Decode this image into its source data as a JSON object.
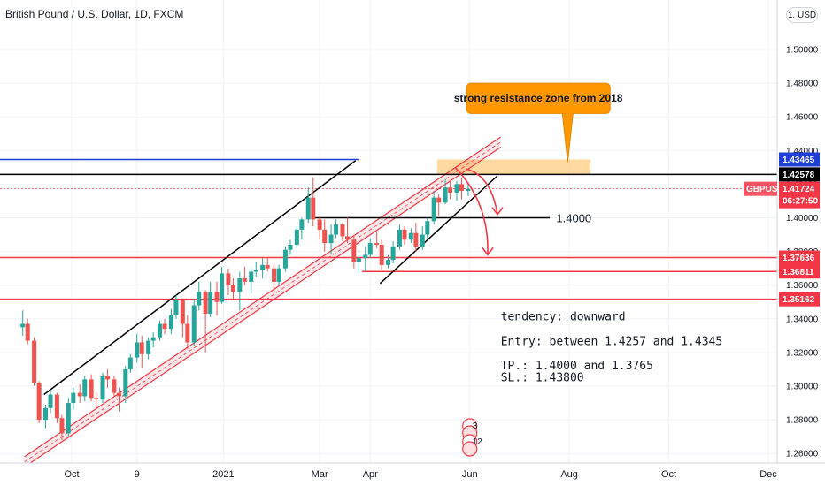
{
  "chart_title": "British Pound / U.S. Dollar, 1D, FXCM",
  "currency_button": "1. USD",
  "chart_data": {
    "type": "candlestick",
    "symbol": "GBPUSD",
    "last_price": "1.41724",
    "countdown": "06:27:50",
    "y_axis_ticks": [
      "1.50000",
      "1.48000",
      "1.46000",
      "1.44000",
      "1.42000",
      "1.40000",
      "1.38000",
      "1.36000",
      "1.34000",
      "1.32000",
      "1.30000",
      "1.28000",
      "1.26000"
    ],
    "ylim": [
      1.255,
      1.52
    ],
    "x_axis_ticks": [
      "Oct",
      "9",
      "2021",
      "Mar",
      "Apr",
      "Jun",
      "Aug",
      "Oct",
      "Dec"
    ],
    "x_range": [
      "2020-08-30",
      "2021-12-31"
    ],
    "price_tags": [
      {
        "label": "1.43465",
        "value": 1.43465,
        "color": "#1f3fd6"
      },
      {
        "label": "1.42578",
        "value": 1.42578,
        "color": "#000000"
      },
      {
        "label": "1.37636",
        "value": 1.37636,
        "color": "#f23645"
      },
      {
        "label": "1.36811",
        "value": 1.36811,
        "color": "#f23645"
      },
      {
        "label": "1.35162",
        "value": 1.35162,
        "color": "#f23645"
      }
    ],
    "candles": [
      [
        "2020-08-31",
        1.335,
        1.345,
        1.33,
        1.337
      ],
      [
        "2020-09-03",
        1.337,
        1.34,
        1.325,
        1.327
      ],
      [
        "2020-09-07",
        1.327,
        1.329,
        1.3,
        1.302
      ],
      [
        "2020-09-10",
        1.302,
        1.303,
        1.278,
        1.28
      ],
      [
        "2020-09-14",
        1.28,
        1.289,
        1.275,
        1.287
      ],
      [
        "2020-09-17",
        1.287,
        1.298,
        1.284,
        1.295
      ],
      [
        "2020-09-21",
        1.295,
        1.296,
        1.278,
        1.281
      ],
      [
        "2020-09-24",
        1.281,
        1.283,
        1.268,
        1.272
      ],
      [
        "2020-09-28",
        1.272,
        1.293,
        1.27,
        1.29
      ],
      [
        "2020-10-01",
        1.29,
        1.299,
        1.286,
        1.296
      ],
      [
        "2020-10-05",
        1.296,
        1.301,
        1.29,
        1.294
      ],
      [
        "2020-10-08",
        1.294,
        1.306,
        1.291,
        1.304
      ],
      [
        "2020-10-12",
        1.304,
        1.307,
        1.291,
        1.293
      ],
      [
        "2020-10-15",
        1.293,
        1.296,
        1.287,
        1.292
      ],
      [
        "2020-10-19",
        1.292,
        1.308,
        1.29,
        1.306
      ],
      [
        "2020-10-22",
        1.306,
        1.31,
        1.299,
        1.304
      ],
      [
        "2020-10-26",
        1.304,
        1.306,
        1.294,
        1.296
      ],
      [
        "2020-10-29",
        1.296,
        1.299,
        1.285,
        1.294
      ],
      [
        "2020-11-02",
        1.294,
        1.312,
        1.29,
        1.31
      ],
      [
        "2020-11-05",
        1.31,
        1.319,
        1.308,
        1.317
      ],
      [
        "2020-11-09",
        1.317,
        1.331,
        1.314,
        1.326
      ],
      [
        "2020-11-12",
        1.326,
        1.33,
        1.311,
        1.319
      ],
      [
        "2020-11-16",
        1.319,
        1.329,
        1.316,
        1.327
      ],
      [
        "2020-11-19",
        1.327,
        1.332,
        1.323,
        1.329
      ],
      [
        "2020-11-23",
        1.329,
        1.339,
        1.327,
        1.337
      ],
      [
        "2020-11-26",
        1.337,
        1.34,
        1.331,
        1.334
      ],
      [
        "2020-11-30",
        1.334,
        1.346,
        1.331,
        1.342
      ],
      [
        "2020-12-03",
        1.342,
        1.354,
        1.34,
        1.351
      ],
      [
        "2020-12-07",
        1.351,
        1.352,
        1.329,
        1.337
      ],
      [
        "2020-12-10",
        1.337,
        1.342,
        1.322,
        1.326
      ],
      [
        "2020-12-14",
        1.326,
        1.352,
        1.324,
        1.348
      ],
      [
        "2020-12-17",
        1.348,
        1.362,
        1.345,
        1.356
      ],
      [
        "2020-12-21",
        1.356,
        1.357,
        1.32,
        1.343
      ],
      [
        "2020-12-24",
        1.343,
        1.362,
        1.341,
        1.356
      ],
      [
        "2020-12-28",
        1.356,
        1.362,
        1.342,
        1.35
      ],
      [
        "2020-12-31",
        1.35,
        1.371,
        1.349,
        1.367
      ],
      [
        "2021-01-04",
        1.367,
        1.37,
        1.354,
        1.36
      ],
      [
        "2021-01-07",
        1.36,
        1.364,
        1.352,
        1.356
      ],
      [
        "2021-01-11",
        1.356,
        1.368,
        1.345,
        1.364
      ],
      [
        "2021-01-14",
        1.364,
        1.371,
        1.36,
        1.362
      ],
      [
        "2021-01-18",
        1.362,
        1.37,
        1.355,
        1.368
      ],
      [
        "2021-01-21",
        1.368,
        1.374,
        1.365,
        1.369
      ],
      [
        "2021-01-25",
        1.369,
        1.376,
        1.364,
        1.372
      ],
      [
        "2021-01-28",
        1.372,
        1.376,
        1.368,
        1.37
      ],
      [
        "2021-02-01",
        1.37,
        1.373,
        1.357,
        1.362
      ],
      [
        "2021-02-04",
        1.362,
        1.372,
        1.36,
        1.37
      ],
      [
        "2021-02-08",
        1.37,
        1.383,
        1.368,
        1.381
      ],
      [
        "2021-02-11",
        1.381,
        1.387,
        1.378,
        1.384
      ],
      [
        "2021-02-15",
        1.384,
        1.395,
        1.382,
        1.393
      ],
      [
        "2021-02-18",
        1.393,
        1.4,
        1.387,
        1.399
      ],
      [
        "2021-02-22",
        1.399,
        1.418,
        1.397,
        1.412
      ],
      [
        "2021-02-25",
        1.412,
        1.424,
        1.395,
        1.399
      ],
      [
        "2021-03-01",
        1.399,
        1.401,
        1.387,
        1.393
      ],
      [
        "2021-03-04",
        1.393,
        1.399,
        1.38,
        1.385
      ],
      [
        "2021-03-08",
        1.385,
        1.396,
        1.378,
        1.39
      ],
      [
        "2021-03-11",
        1.39,
        1.399,
        1.388,
        1.396
      ],
      [
        "2021-03-15",
        1.396,
        1.397,
        1.386,
        1.389
      ],
      [
        "2021-03-18",
        1.389,
        1.4,
        1.385,
        1.387
      ],
      [
        "2021-03-22",
        1.387,
        1.39,
        1.37,
        1.374
      ],
      [
        "2021-03-25",
        1.374,
        1.379,
        1.367,
        1.376
      ],
      [
        "2021-03-29",
        1.376,
        1.383,
        1.368,
        1.378
      ],
      [
        "2021-04-01",
        1.378,
        1.388,
        1.376,
        1.385
      ],
      [
        "2021-04-05",
        1.385,
        1.392,
        1.382,
        1.384
      ],
      [
        "2021-04-08",
        1.384,
        1.387,
        1.369,
        1.372
      ],
      [
        "2021-04-12",
        1.372,
        1.378,
        1.37,
        1.375
      ],
      [
        "2021-04-15",
        1.375,
        1.386,
        1.373,
        1.383
      ],
      [
        "2021-04-19",
        1.383,
        1.396,
        1.381,
        1.393
      ],
      [
        "2021-04-22",
        1.393,
        1.395,
        1.384,
        1.387
      ],
      [
        "2021-04-26",
        1.387,
        1.394,
        1.385,
        1.391
      ],
      [
        "2021-04-29",
        1.391,
        1.397,
        1.38,
        1.383
      ],
      [
        "2021-05-03",
        1.383,
        1.395,
        1.381,
        1.39
      ],
      [
        "2021-05-06",
        1.39,
        1.4,
        1.388,
        1.398
      ],
      [
        "2021-05-10",
        1.398,
        1.416,
        1.396,
        1.412
      ],
      [
        "2021-05-13",
        1.412,
        1.414,
        1.401,
        1.409
      ],
      [
        "2021-05-17",
        1.409,
        1.423,
        1.408,
        1.418
      ],
      [
        "2021-05-20",
        1.418,
        1.422,
        1.411,
        1.415
      ],
      [
        "2021-05-24",
        1.415,
        1.422,
        1.41,
        1.42
      ],
      [
        "2021-05-27",
        1.42,
        1.424,
        1.411,
        1.416
      ],
      [
        "2021-05-31",
        1.416,
        1.421,
        1.413,
        1.4172
      ]
    ],
    "horizontal_lines": [
      {
        "value": 1.43465,
        "from": "2020-08-01",
        "to": "2021-03-25",
        "color": "#1f3fd6",
        "width": 1.5
      },
      {
        "value": 1.42578,
        "from": "2020-08-01",
        "to": "2022-01-31",
        "color": "#000000",
        "width": 1.5
      },
      {
        "value": 1.41724,
        "from": "2020-08-01",
        "to": "2022-01-31",
        "color": "#f23645",
        "width": 0.8,
        "dash": "2,2"
      },
      {
        "value": 1.4,
        "from": "2021-02-24",
        "to": "2021-07-20",
        "color": "#000000",
        "width": 1.5
      },
      {
        "value": 1.37636,
        "from": "2020-08-01",
        "to": "2022-01-31",
        "color": "#f23645",
        "width": 1.5
      },
      {
        "value": 1.36811,
        "from": "2021-03-27",
        "to": "2022-01-31",
        "color": "#f23645",
        "width": 1.5
      },
      {
        "value": 1.35162,
        "from": "2020-08-01",
        "to": "2022-01-31",
        "color": "#f23645",
        "width": 1.5
      }
    ],
    "trendlines": [
      {
        "from": [
          "2020-09-13",
          1.295
        ],
        "to": [
          "2021-03-23",
          1.434
        ],
        "color": "#000000",
        "width": 1.5
      },
      {
        "from": [
          "2021-04-07",
          1.361
        ],
        "to": [
          "2021-06-18",
          1.425
        ],
        "color": "#000000",
        "width": 1.5
      }
    ],
    "channel": {
      "from": [
        "2020-09-01",
        1.252
      ],
      "to": [
        "2021-06-20",
        1.442
      ],
      "offset": 0.006,
      "color": "#f23645"
    },
    "resistance_zone": {
      "from": "2021-05-12",
      "to": "2021-08-14",
      "top": 1.43465,
      "bottom": 1.42578,
      "color": "#ffcc80"
    },
    "callout": {
      "text": "strong resistance zone from 2018",
      "anchor": [
        "2021-07-31",
        1.433
      ],
      "box_from": "2021-05-30",
      "box_to": "2021-08-26",
      "box_top": 1.48,
      "box_bottom": 1.462,
      "color": "#ff9800"
    },
    "projection_arrows": [
      {
        "from": [
          "2021-05-30",
          1.429
        ],
        "cp": [
          "2021-06-14",
          1.425
        ],
        "to": [
          "2021-06-18",
          1.402
        ]
      },
      {
        "from": [
          "2021-05-23",
          1.43
        ],
        "cp": [
          "2021-06-13",
          1.409
        ],
        "to": [
          "2021-06-12",
          1.378
        ]
      }
    ],
    "level_label": {
      "text": "1.4000",
      "at": [
        "2021-07-24",
        1.4
      ]
    },
    "annotations": [
      {
        "text": "tendency: downward",
        "at": [
          "2021-06-20",
          1.339
        ]
      },
      {
        "text": "Entry: between 1.4257 and 1.4345",
        "at": [
          "2021-06-20",
          1.3245
        ]
      },
      {
        "text": "TP.: 1.4000 and 1.3765",
        "at": [
          "2021-06-20",
          1.31
        ]
      },
      {
        "text": "SL.: 1.43800",
        "at": [
          "2021-06-20",
          1.303
        ]
      }
    ],
    "event_badges": [
      "3",
      "12"
    ]
  }
}
